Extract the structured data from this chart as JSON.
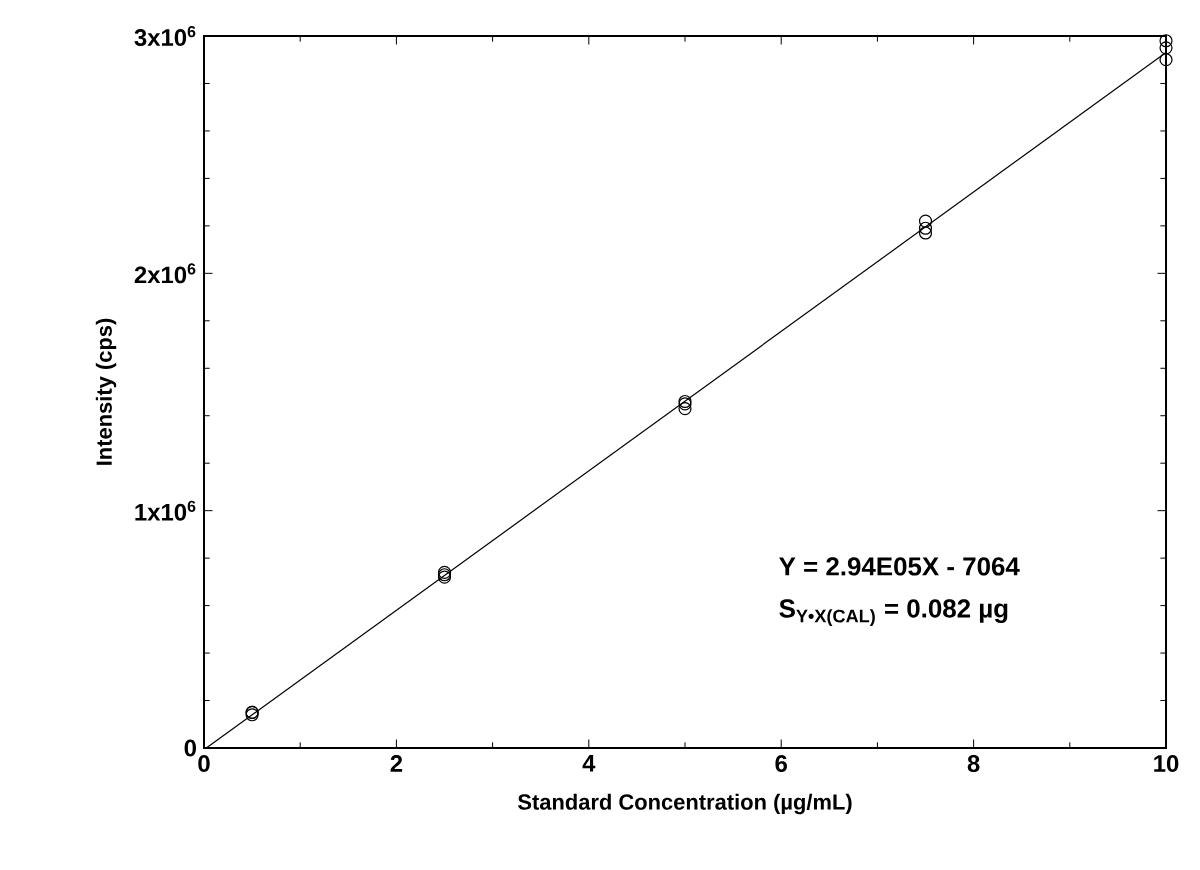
{
  "chart_data": {
    "type": "scatter",
    "xlabel": "Standard Concentration (µg/mL)",
    "ylabel": "Intensity (cps)",
    "series": [
      {
        "color": "#000000",
        "marker": "circle",
        "x": [
          0.5,
          0.5,
          0.5,
          2.5,
          2.5,
          2.5,
          5,
          5,
          5,
          7.5,
          7.5,
          7.5,
          10,
          10,
          10
        ],
        "values": [
          140000,
          150000,
          150000,
          720000,
          730000,
          740000,
          1430000,
          1450000,
          1460000,
          2170000,
          2190000,
          2220000,
          2900000,
          2950000,
          2980000
        ]
      },
      {
        "type": "line",
        "color": "#000000",
        "marker": "none",
        "line_style": "solid",
        "x": [
          0.024,
          10
        ],
        "values": [
          0,
          2930000
        ]
      }
    ],
    "xlim": [
      0,
      10
    ],
    "ylim": [
      0,
      3000000
    ],
    "xticks": [
      0,
      2,
      4,
      6,
      8,
      10
    ],
    "yticks": [
      0,
      {
        "value": 1000000,
        "label": "1x10$^{6}$"
      },
      {
        "value": 2000000,
        "label": "2x10$^{6}$"
      },
      {
        "value": 3000000,
        "label": "3x10$^{6}$"
      }
    ],
    "grid": false,
    "annotations": [
      "Y = 2.94E05X - 7064",
      "S$_{Y•X(CAL)}$ = 0.082 µg"
    ]
  }
}
